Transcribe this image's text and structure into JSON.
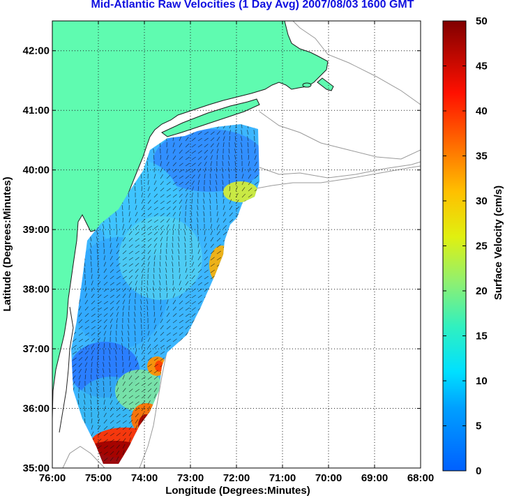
{
  "title": "Mid-Atlantic Raw Velocities (1 Day Avg) 2007/08/03 1600 GMT",
  "map": {
    "xlabel": "Longitude (Degrees:Minutes)",
    "ylabel": "Latitude (Degrees:Minutes)",
    "x_ticks": [
      "76:00",
      "75:00",
      "74:00",
      "73:00",
      "72:00",
      "71:00",
      "70:00",
      "69:00",
      "68:00"
    ],
    "y_ticks": [
      "42:00",
      "41:00",
      "40:00",
      "39:00",
      "38:00",
      "37:00",
      "36:00",
      "35:00"
    ],
    "lon_range": [
      -76,
      -68
    ],
    "lat_range": [
      35,
      42.5
    ],
    "grid": "dotted",
    "land_color": "#5ffbb0",
    "water_color": "#ffffff"
  },
  "colorbar": {
    "label": "Surface Velocity (cm/s)",
    "ticks": [
      "50",
      "45",
      "40",
      "35",
      "30",
      "25",
      "20",
      "15",
      "10",
      "5",
      "0"
    ],
    "range": [
      0,
      50
    ],
    "colormap": "jet"
  }
}
